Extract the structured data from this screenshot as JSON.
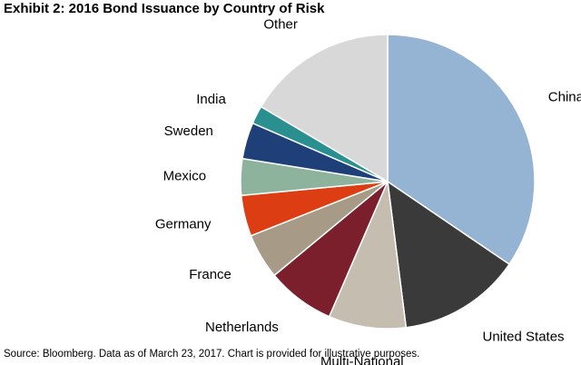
{
  "title": "Exhibit 2: 2016 Bond Issuance by Country of Risk",
  "source": "Source: Bloomberg.  Data as of March 23, 2017.  Chart is provided for illustrative purposes.",
  "chart_data": {
    "type": "pie",
    "title": "Exhibit 2: 2016 Bond Issuance by Country of Risk",
    "unit": "%",
    "slices": [
      {
        "label": "China",
        "value": 34.5,
        "color": "#95b3d2"
      },
      {
        "label": "United States",
        "value": 13.5,
        "color": "#3a3a3a"
      },
      {
        "label": "Multi-National",
        "value": 8.5,
        "color": "#c5bdb0"
      },
      {
        "label": "Netherlands",
        "value": 7.5,
        "color": "#7b1f2d"
      },
      {
        "label": "France",
        "value": 5.0,
        "color": "#a79a87"
      },
      {
        "label": "Germany",
        "value": 4.5,
        "color": "#dd3d12"
      },
      {
        "label": "Mexico",
        "value": 4.0,
        "color": "#8db39d"
      },
      {
        "label": "Sweden",
        "value": 4.0,
        "color": "#1f3f78"
      },
      {
        "label": "India",
        "value": 2.0,
        "color": "#2a8f8f"
      },
      {
        "label": "Other",
        "value": 16.5,
        "color": "#d8d8d8"
      }
    ]
  }
}
